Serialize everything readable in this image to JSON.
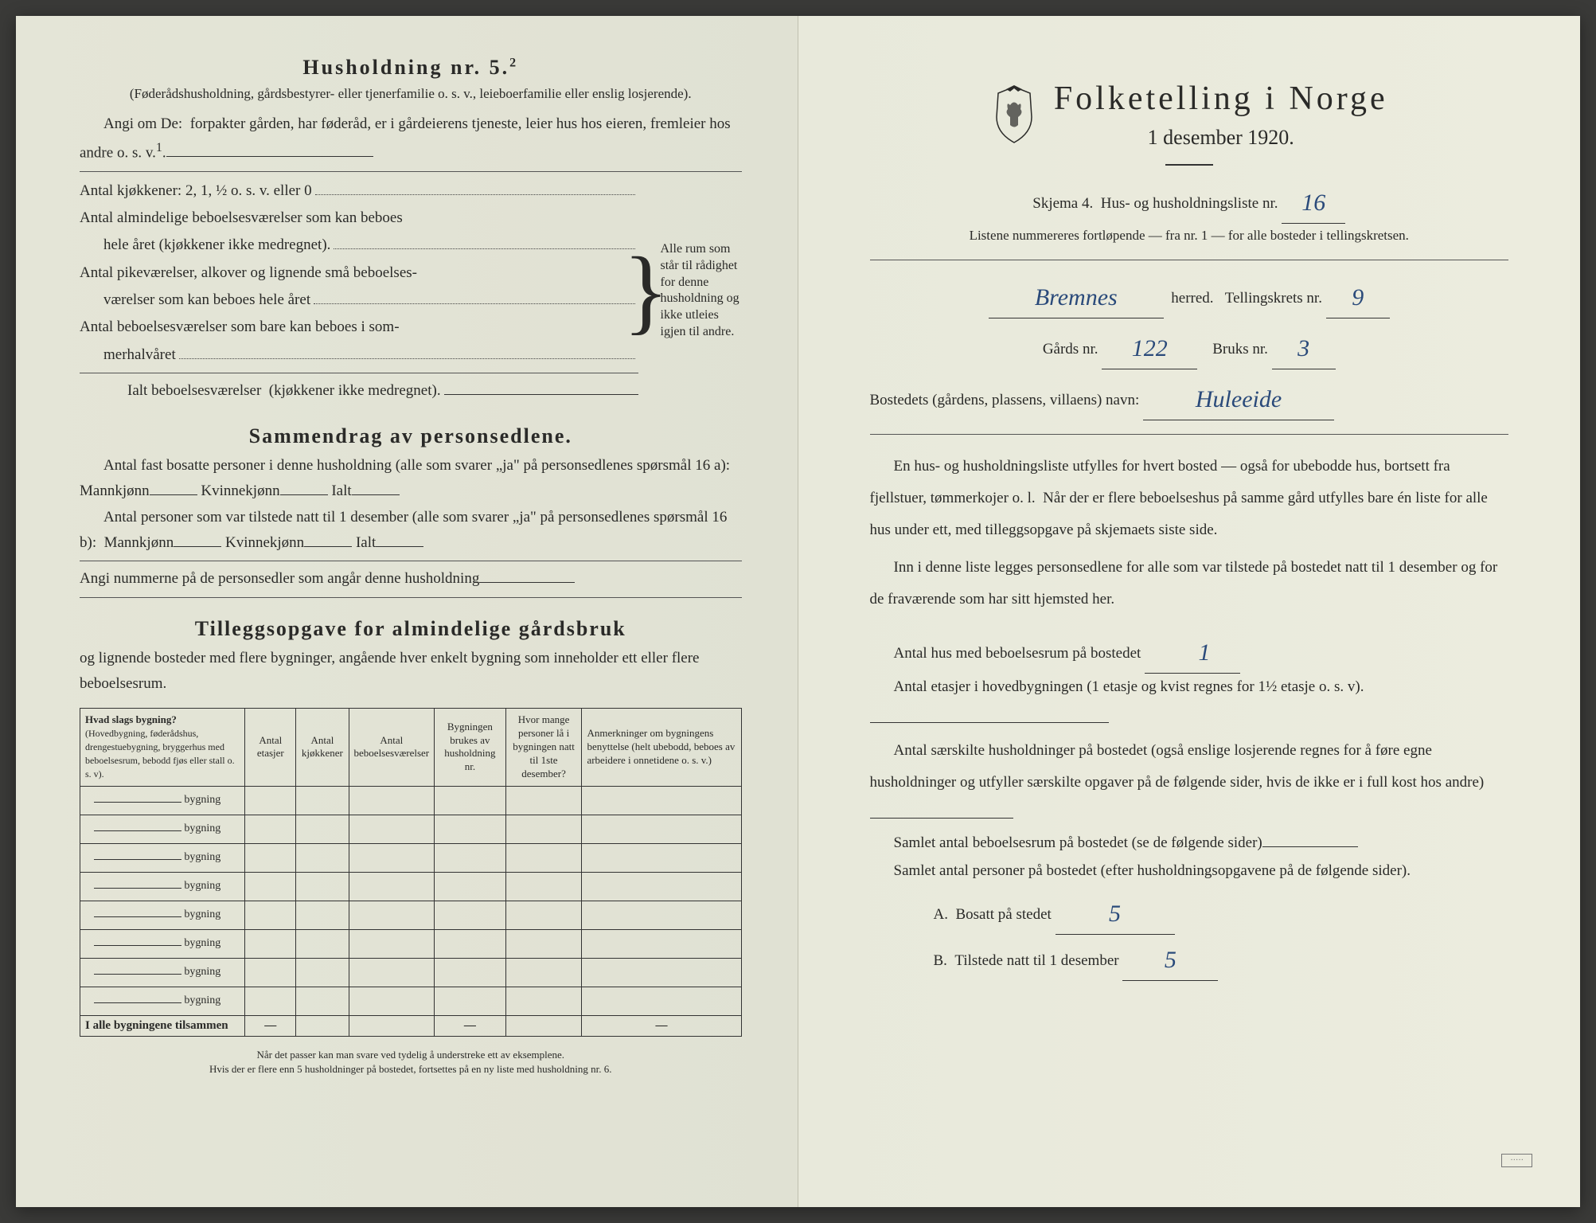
{
  "left": {
    "h5_title": "Husholdning nr. 5.",
    "h5_sup": "2",
    "h5_sub": "(Føderådshusholdning, gårdsbestyrer- eller tjenerfamilie o. s. v., leieboerfamilie eller enslig losjerende).",
    "angi_line": "Angi om De:  forpakter gården, har føderåd, er i gårdeierens tjeneste, leier hus hos eieren, fremleier hos andre o. s. v.",
    "angi_sup": "1",
    "kjokken": "Antal kjøkkener: 2, 1, ½ o. s. v. eller 0",
    "alm_beboelse1": "Antal almindelige beboelsesværelser som kan beboes",
    "alm_beboelse2": "hele året (kjøkkener ikke medregnet).",
    "pike1": "Antal pikeværelser, alkover og lignende små beboelses-",
    "pike2": "værelser som kan beboes hele året",
    "sommer1": "Antal beboelsesværelser som bare kan beboes i som-",
    "sommer2": "merhalvåret",
    "ialt_rooms": "Ialt beboelsesværelser  (kjøkkener ikke medregnet).",
    "brace_text": "Alle rum som står til rådighet for denne husholdning og ikke utleies igjen til andre.",
    "sammendrag_title": "Sammendrag av personsedlene.",
    "fast_bosatte": "Antal fast bosatte personer i denne husholdning (alle som svarer „ja\" på personsedlenes spørsmål 16 a):  Mannkjønn",
    "kvinnekjonn": "Kvinnekjønn",
    "ialt": "Ialt",
    "tilstede": "Antal personer som var tilstede natt til 1 desember (alle som svarer „ja\" på personsedlenes spørsmål 16 b):  Mannkjønn",
    "angi_nummerne": "Angi nummerne på de personsedler som angår denne husholdning",
    "tillegg_title": "Tilleggsopgave for almindelige gårdsbruk",
    "tillegg_sub": "og lignende bosteder med flere bygninger, angående hver enkelt bygning som inneholder ett eller flere beboelsesrum.",
    "th1a": "Hvad slags bygning?",
    "th1b": "(Hovedbygning, føderådshus, drengestuebygning, bryggerhus med beboelsesrum, bebodd fjøs eller stall o. s. v).",
    "th2": "Antal etasjer",
    "th3": "Antal kjøkkener",
    "th4": "Antal beboelsesværelser",
    "th5": "Bygningen brukes av husholdning nr.",
    "th6": "Hvor mange personer lå i bygningen natt til 1ste desember?",
    "th7": "Anmerkninger om bygningens benyttelse (helt ubebodd, beboes av arbeidere i onnetidene o. s. v.)",
    "bygning": "bygning",
    "tfoot": "I alle bygningene tilsammen",
    "dash": "—",
    "footnote": "Når det passer kan man svare ved tydelig å understreke ett av eksemplene.\nHvis der er flere enn 5 husholdninger på bostedet, fortsettes på en ny liste med husholdning nr. 6."
  },
  "right": {
    "title": "Folketelling i Norge",
    "subtitle": "1 desember 1920.",
    "skjema": "Skjema 4.  Hus- og husholdningsliste nr.",
    "skjema_val": "16",
    "listene": "Listene nummereres fortløpende — fra nr. 1 — for alle bosteder i tellingskretsen.",
    "herred_val": "Bremnes",
    "herred_label": "herred.   Tellingskrets nr.",
    "krets_val": "9",
    "gards_label": "Gårds nr.",
    "gards_val": "122",
    "bruks_label": "Bruks nr.",
    "bruks_val": "3",
    "bosted_label": "Bostedets (gårdens, plassens, villaens) navn:",
    "bosted_val": "Huleeide",
    "para1": "En hus- og husholdningsliste utfylles for hvert bosted — også for ubebodde hus, bortsett fra fjellstuer, tømmerkojer o. l.  Når der er flere beboelseshus på samme gård utfylles bare én liste for alle hus under ett, med tilleggsopgave på skjemaets siste side.",
    "para2": "Inn i denne liste legges personsedlene for alle som var tilstede på bostedet natt til 1 desember og for de fraværende som har sitt hjemsted her.",
    "q1": "Antal hus med beboelsesrum på bostedet",
    "q1_val": "1",
    "q2": "Antal etasjer i hovedbygningen (1 etasje og kvist regnes for 1½ etasje o. s. v).",
    "q3": "Antal særskilte husholdninger på bostedet (også enslige losjerende regnes for å føre egne husholdninger og utfyller særskilte opgaver på de følgende sider, hvis de ikke er i full kost hos andre)",
    "q4": "Samlet antal beboelsesrum på bostedet (se de følgende sider)",
    "q5": "Samlet antal personer på bostedet (efter husholdningsopgavene på de følgende sider).",
    "qA": "A.  Bosatt på stedet",
    "qA_val": "5",
    "qB": "B.  Tilstede natt til 1 desember",
    "qB_val": "5"
  },
  "colors": {
    "paper": "#e8e9db",
    "ink": "#2a2a28",
    "handwriting": "#2a4a7a"
  }
}
